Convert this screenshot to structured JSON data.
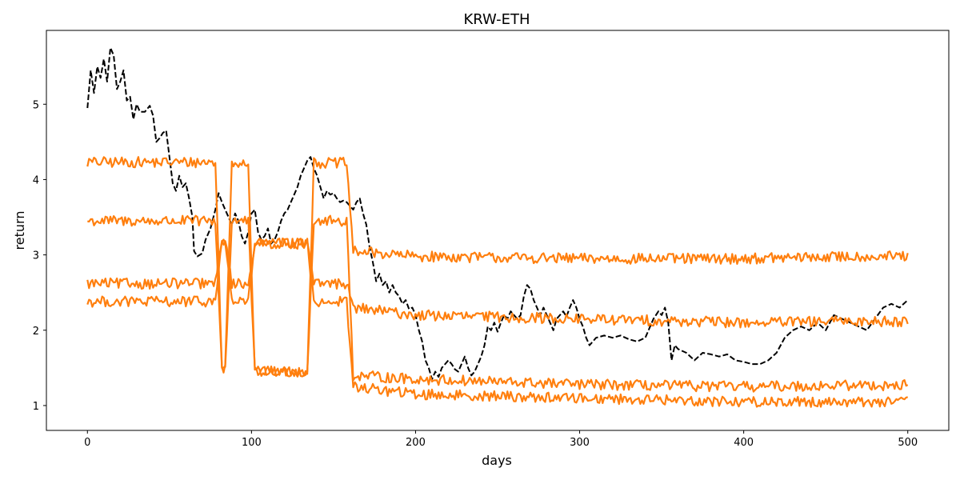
{
  "chart_data": {
    "type": "line",
    "title": "KRW-ETH",
    "xlabel": "days",
    "ylabel": "return",
    "xlim": [
      -25,
      525
    ],
    "ylim": [
      0.67,
      5.98
    ],
    "x_ticks": [
      0,
      100,
      200,
      300,
      400,
      500
    ],
    "y_ticks": [
      1,
      2,
      3,
      4,
      5
    ],
    "grid": false,
    "legend": "none",
    "colors": {
      "actual": "#000000",
      "simulated": "#ff7f0e"
    },
    "series": [
      {
        "style": "dashed",
        "color": "#000000",
        "points": [
          [
            0,
            4.95
          ],
          [
            2,
            5.45
          ],
          [
            4,
            5.15
          ],
          [
            6,
            5.5
          ],
          [
            8,
            5.35
          ],
          [
            10,
            5.6
          ],
          [
            12,
            5.3
          ],
          [
            14,
            5.75
          ],
          [
            16,
            5.65
          ],
          [
            18,
            5.2
          ],
          [
            20,
            5.3
          ],
          [
            22,
            5.45
          ],
          [
            24,
            5.05
          ],
          [
            26,
            5.1
          ],
          [
            28,
            4.8
          ],
          [
            30,
            5.0
          ],
          [
            32,
            4.9
          ],
          [
            35,
            4.9
          ],
          [
            38,
            4.98
          ],
          [
            40,
            4.85
          ],
          [
            42,
            4.5
          ],
          [
            44,
            4.55
          ],
          [
            46,
            4.62
          ],
          [
            48,
            4.65
          ],
          [
            50,
            4.3
          ],
          [
            52,
            3.95
          ],
          [
            54,
            3.85
          ],
          [
            56,
            4.05
          ],
          [
            58,
            3.9
          ],
          [
            60,
            3.95
          ],
          [
            62,
            3.75
          ],
          [
            64,
            3.5
          ],
          [
            65,
            3.05
          ],
          [
            67,
            2.98
          ],
          [
            70,
            3.02
          ],
          [
            72,
            3.2
          ],
          [
            75,
            3.35
          ],
          [
            78,
            3.6
          ],
          [
            80,
            3.82
          ],
          [
            82,
            3.7
          ],
          [
            85,
            3.55
          ],
          [
            88,
            3.4
          ],
          [
            90,
            3.55
          ],
          [
            92,
            3.45
          ],
          [
            94,
            3.25
          ],
          [
            96,
            3.15
          ],
          [
            98,
            3.3
          ],
          [
            100,
            3.55
          ],
          [
            102,
            3.6
          ],
          [
            104,
            3.3
          ],
          [
            106,
            3.2
          ],
          [
            108,
            3.25
          ],
          [
            110,
            3.35
          ],
          [
            112,
            3.15
          ],
          [
            114,
            3.2
          ],
          [
            116,
            3.3
          ],
          [
            118,
            3.45
          ],
          [
            120,
            3.55
          ],
          [
            122,
            3.6
          ],
          [
            124,
            3.7
          ],
          [
            126,
            3.8
          ],
          [
            128,
            3.9
          ],
          [
            130,
            4.05
          ],
          [
            132,
            4.15
          ],
          [
            134,
            4.25
          ],
          [
            136,
            4.3
          ],
          [
            138,
            4.15
          ],
          [
            140,
            4.05
          ],
          [
            142,
            3.9
          ],
          [
            144,
            3.75
          ],
          [
            146,
            3.85
          ],
          [
            148,
            3.8
          ],
          [
            150,
            3.82
          ],
          [
            152,
            3.75
          ],
          [
            154,
            3.7
          ],
          [
            156,
            3.72
          ],
          [
            158,
            3.7
          ],
          [
            160,
            3.65
          ],
          [
            162,
            3.6
          ],
          [
            164,
            3.7
          ],
          [
            166,
            3.75
          ],
          [
            168,
            3.55
          ],
          [
            170,
            3.4
          ],
          [
            172,
            3.1
          ],
          [
            174,
            2.9
          ],
          [
            176,
            2.65
          ],
          [
            178,
            2.75
          ],
          [
            180,
            2.6
          ],
          [
            182,
            2.65
          ],
          [
            184,
            2.5
          ],
          [
            186,
            2.6
          ],
          [
            188,
            2.5
          ],
          [
            190,
            2.45
          ],
          [
            192,
            2.35
          ],
          [
            194,
            2.4
          ],
          [
            196,
            2.28
          ],
          [
            198,
            2.3
          ],
          [
            200,
            2.2
          ],
          [
            202,
            2.0
          ],
          [
            204,
            1.85
          ],
          [
            206,
            1.6
          ],
          [
            208,
            1.5
          ],
          [
            210,
            1.35
          ],
          [
            212,
            1.45
          ],
          [
            214,
            1.38
          ],
          [
            216,
            1.5
          ],
          [
            218,
            1.55
          ],
          [
            220,
            1.6
          ],
          [
            222,
            1.55
          ],
          [
            224,
            1.48
          ],
          [
            226,
            1.45
          ],
          [
            228,
            1.55
          ],
          [
            230,
            1.65
          ],
          [
            232,
            1.5
          ],
          [
            234,
            1.4
          ],
          [
            236,
            1.45
          ],
          [
            238,
            1.55
          ],
          [
            240,
            1.65
          ],
          [
            242,
            1.8
          ],
          [
            244,
            2.05
          ],
          [
            246,
            2.0
          ],
          [
            248,
            2.1
          ],
          [
            250,
            1.98
          ],
          [
            252,
            2.1
          ],
          [
            254,
            2.2
          ],
          [
            256,
            2.15
          ],
          [
            258,
            2.25
          ],
          [
            260,
            2.2
          ],
          [
            262,
            2.15
          ],
          [
            264,
            2.2
          ],
          [
            266,
            2.45
          ],
          [
            268,
            2.6
          ],
          [
            270,
            2.55
          ],
          [
            272,
            2.4
          ],
          [
            274,
            2.3
          ],
          [
            276,
            2.2
          ],
          [
            278,
            2.3
          ],
          [
            280,
            2.2
          ],
          [
            282,
            2.1
          ],
          [
            284,
            2.0
          ],
          [
            286,
            2.15
          ],
          [
            288,
            2.2
          ],
          [
            290,
            2.25
          ],
          [
            292,
            2.18
          ],
          [
            294,
            2.3
          ],
          [
            296,
            2.4
          ],
          [
            298,
            2.3
          ],
          [
            300,
            2.15
          ],
          [
            302,
            2.05
          ],
          [
            304,
            1.9
          ],
          [
            306,
            1.8
          ],
          [
            308,
            1.85
          ],
          [
            310,
            1.9
          ],
          [
            315,
            1.93
          ],
          [
            320,
            1.9
          ],
          [
            325,
            1.93
          ],
          [
            330,
            1.88
          ],
          [
            335,
            1.85
          ],
          [
            340,
            1.9
          ],
          [
            345,
            2.15
          ],
          [
            348,
            2.25
          ],
          [
            350,
            2.2
          ],
          [
            352,
            2.3
          ],
          [
            354,
            2.1
          ],
          [
            356,
            1.6
          ],
          [
            358,
            1.8
          ],
          [
            360,
            1.75
          ],
          [
            365,
            1.7
          ],
          [
            370,
            1.6
          ],
          [
            375,
            1.7
          ],
          [
            380,
            1.68
          ],
          [
            385,
            1.65
          ],
          [
            390,
            1.68
          ],
          [
            395,
            1.6
          ],
          [
            400,
            1.58
          ],
          [
            405,
            1.55
          ],
          [
            410,
            1.55
          ],
          [
            415,
            1.6
          ],
          [
            420,
            1.7
          ],
          [
            425,
            1.9
          ],
          [
            430,
            2.0
          ],
          [
            435,
            2.05
          ],
          [
            440,
            2.0
          ],
          [
            445,
            2.1
          ],
          [
            450,
            2.0
          ],
          [
            455,
            2.2
          ],
          [
            460,
            2.15
          ],
          [
            465,
            2.1
          ],
          [
            470,
            2.05
          ],
          [
            475,
            2.0
          ],
          [
            480,
            2.15
          ],
          [
            485,
            2.3
          ],
          [
            490,
            2.35
          ],
          [
            495,
            2.3
          ],
          [
            500,
            2.4
          ]
        ]
      },
      {
        "style": "solid",
        "color": "#ff7f0e",
        "base": [
          4.23,
          1.5,
          4.23,
          1.45,
          4.22,
          3.05,
          2.98,
          2.95,
          2.95,
          2.98
        ]
      },
      {
        "style": "solid",
        "color": "#ff7f0e",
        "base": [
          3.45,
          1.5,
          3.45,
          1.45,
          3.45,
          1.4,
          1.35,
          1.28,
          1.25,
          1.27
        ]
      },
      {
        "style": "solid",
        "color": "#ff7f0e",
        "base": [
          2.62,
          3.2,
          2.62,
          3.15,
          2.62,
          2.3,
          2.2,
          2.15,
          2.1,
          2.12
        ]
      },
      {
        "style": "solid",
        "color": "#ff7f0e",
        "base": [
          2.38,
          3.2,
          2.38,
          3.15,
          2.38,
          1.25,
          1.15,
          1.1,
          1.05,
          1.05
        ]
      }
    ]
  }
}
